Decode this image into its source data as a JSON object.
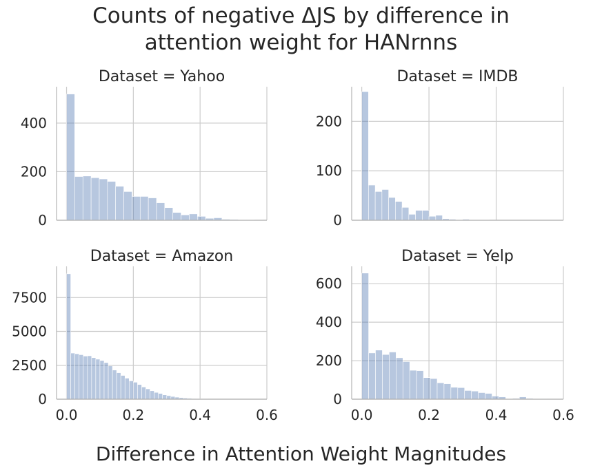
{
  "title_lines": [
    "Counts of negative ΔJS by difference in",
    "attention weight for HANrnns"
  ],
  "chart_data": {
    "type": "bar",
    "title": "Counts of negative ΔJS by difference in attention weight for HANrnns",
    "xlabel": "Difference in Attention Weight Magnitudes",
    "ylabel": "",
    "xlim": [
      -0.03,
      0.6
    ],
    "xticks": [
      0.0,
      0.2,
      0.4,
      0.6
    ],
    "xtick_labels": [
      "0.0",
      "0.2",
      "0.4",
      "0.6"
    ],
    "grid": true,
    "bar_color": "#4c72b0",
    "panels": [
      {
        "title": "Dataset = Yahoo",
        "ylim": [
          0,
          550
        ],
        "yticks": [
          0,
          200,
          400
        ],
        "ytick_labels": [
          "0",
          "200",
          "400"
        ],
        "bins": [
          0.0,
          0.0245,
          0.049,
          0.0735,
          0.098,
          0.1225,
          0.147,
          0.1715,
          0.196,
          0.2205,
          0.245,
          0.2695,
          0.294,
          0.3185,
          0.343,
          0.3675,
          0.392,
          0.4165,
          0.441,
          0.4655,
          0.49,
          0.5145,
          0.539,
          0.5635,
          0.588
        ],
        "counts": [
          520,
          180,
          182,
          175,
          170,
          160,
          140,
          118,
          98,
          98,
          92,
          72,
          52,
          32,
          22,
          26,
          16,
          8,
          10,
          4,
          3,
          2,
          2,
          1
        ]
      },
      {
        "title": "Dataset = IMDB",
        "ylim": [
          0,
          270
        ],
        "yticks": [
          0,
          100,
          200
        ],
        "ytick_labels": [
          "0",
          "100",
          "200"
        ],
        "bins": [
          0.0,
          0.02,
          0.04,
          0.06,
          0.08,
          0.1,
          0.12,
          0.14,
          0.16,
          0.18,
          0.2,
          0.22,
          0.24,
          0.26,
          0.28,
          0.3,
          0.32,
          0.34,
          0.36,
          0.38,
          0.4,
          0.42,
          0.44,
          0.46,
          0.48,
          0.5,
          0.52,
          0.54,
          0.56,
          0.58,
          0.6
        ],
        "counts": [
          260,
          71,
          58,
          62,
          46,
          38,
          26,
          12,
          20,
          20,
          8,
          10,
          3,
          2,
          1,
          2,
          1,
          1,
          1,
          0,
          0,
          0,
          0,
          0,
          0,
          0,
          0,
          0,
          0,
          0
        ]
      },
      {
        "title": "Dataset = Amazon",
        "ylim": [
          0,
          9800
        ],
        "yticks": [
          0,
          2500,
          5000,
          7500
        ],
        "ytick_labels": [
          "0",
          "2500",
          "5000",
          "7500"
        ],
        "bins": [
          0.0,
          0.0125,
          0.025,
          0.0375,
          0.05,
          0.0625,
          0.075,
          0.0875,
          0.1,
          0.1125,
          0.125,
          0.1375,
          0.15,
          0.1625,
          0.175,
          0.1875,
          0.2,
          0.2125,
          0.225,
          0.2375,
          0.25,
          0.2625,
          0.275,
          0.2875,
          0.3,
          0.3125,
          0.325,
          0.3375,
          0.35,
          0.3625,
          0.375,
          0.3875,
          0.4,
          0.4125,
          0.425,
          0.4375,
          0.45,
          0.4625,
          0.475,
          0.4875,
          0.5,
          0.5125,
          0.525,
          0.5375,
          0.55,
          0.5625,
          0.575,
          0.5875
        ],
        "counts": [
          9250,
          3400,
          3350,
          3280,
          3180,
          3200,
          3060,
          2950,
          2850,
          2700,
          2450,
          2150,
          1950,
          1750,
          1550,
          1350,
          1250,
          1080,
          900,
          760,
          620,
          500,
          420,
          320,
          260,
          200,
          150,
          110,
          80,
          60,
          45,
          30,
          20,
          15,
          12,
          10,
          8,
          6,
          5,
          4,
          3,
          3,
          2,
          2,
          2,
          1,
          1
        ]
      },
      {
        "title": "Dataset = Yelp",
        "ylim": [
          0,
          690
        ],
        "yticks": [
          0,
          200,
          400,
          600
        ],
        "ytick_labels": [
          "0",
          "200",
          "400",
          "600"
        ],
        "bins": [
          0.0,
          0.0204,
          0.0408,
          0.0612,
          0.0816,
          0.102,
          0.1224,
          0.1428,
          0.1632,
          0.1836,
          0.204,
          0.2244,
          0.2448,
          0.2652,
          0.2856,
          0.306,
          0.3264,
          0.3468,
          0.3672,
          0.3876,
          0.408,
          0.4284,
          0.4488,
          0.4692,
          0.4896,
          0.51,
          0.5304,
          0.5508,
          0.5712,
          0.5916
        ],
        "counts": [
          655,
          240,
          255,
          232,
          245,
          215,
          195,
          150,
          148,
          112,
          107,
          85,
          80,
          62,
          60,
          45,
          42,
          34,
          30,
          16,
          12,
          3,
          4,
          12,
          4,
          3,
          2,
          1,
          1
        ]
      }
    ]
  }
}
